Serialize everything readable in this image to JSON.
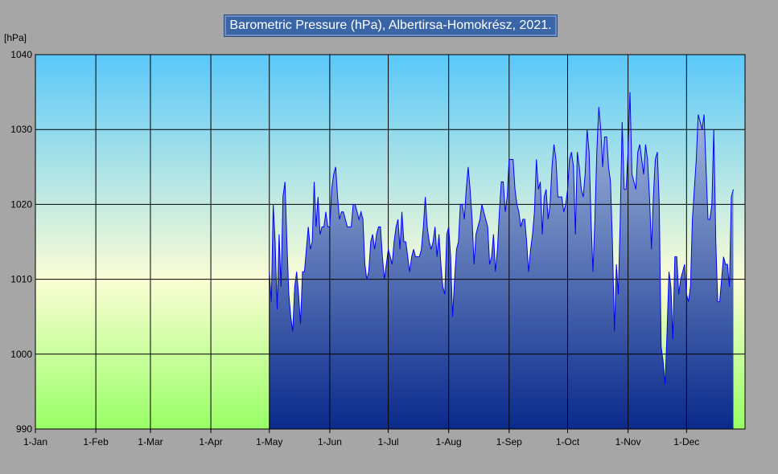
{
  "chart_data": {
    "type": "area",
    "title": "Barometric Pressure (hPa), Albertirsa-Homokrész,  2021.",
    "y_unit_label": "[hPa]",
    "ylim": [
      990,
      1040
    ],
    "y_ticks": [
      990,
      1000,
      1010,
      1020,
      1030,
      1040
    ],
    "x_domain_days": [
      0,
      364
    ],
    "x_ticks": [
      {
        "day": 0,
        "label": "1-Jan"
      },
      {
        "day": 31,
        "label": "1-Feb"
      },
      {
        "day": 59,
        "label": "1-Mar"
      },
      {
        "day": 90,
        "label": "1-Apr"
      },
      {
        "day": 120,
        "label": "1-May"
      },
      {
        "day": 151,
        "label": "1-Jun"
      },
      {
        "day": 181,
        "label": "1-Jul"
      },
      {
        "day": 212,
        "label": "1-Aug"
      },
      {
        "day": 243,
        "label": "1-Sep"
      },
      {
        "day": 273,
        "label": "1-Oct"
      },
      {
        "day": 304,
        "label": "1-Nov"
      },
      {
        "day": 334,
        "label": "1-Dec"
      }
    ],
    "grid": true,
    "background_colors": {
      "top": "#5ac8fa",
      "middle": "#fbfdd5",
      "bottom": "#99ff66"
    },
    "series": [
      {
        "color": "#0000ff",
        "fill_top": "#aac0e0",
        "fill_bottom": "#0a2a8c",
        "start_day": 120,
        "values": [
          1011,
          1007,
          1020,
          1015,
          1006,
          1016,
          1009,
          1021,
          1023,
          1015,
          1008,
          1005,
          1003,
          1009,
          1011,
          1008,
          1004,
          1011,
          1011,
          1014,
          1017,
          1014,
          1015,
          1023,
          1017,
          1021,
          1016,
          1017,
          1017,
          1019,
          1017,
          1017,
          1022,
          1024,
          1025,
          1021,
          1018,
          1019,
          1019,
          1018,
          1017,
          1017,
          1017,
          1020,
          1020,
          1019,
          1018,
          1019,
          1018,
          1012,
          1010,
          1011,
          1015,
          1016,
          1014,
          1016,
          1017,
          1017,
          1013,
          1010,
          1012,
          1014,
          1013,
          1012,
          1015,
          1017,
          1018,
          1014,
          1019,
          1015,
          1015,
          1013,
          1011,
          1013,
          1014,
          1013,
          1013,
          1013,
          1014,
          1017,
          1021,
          1017,
          1015,
          1014,
          1015,
          1017,
          1013,
          1016,
          1012,
          1009,
          1008,
          1016,
          1017,
          1013,
          1005,
          1010,
          1014,
          1015,
          1020,
          1020,
          1018,
          1022,
          1025,
          1022,
          1018,
          1012,
          1016,
          1017,
          1018,
          1020,
          1019,
          1018,
          1017,
          1012,
          1013,
          1016,
          1011,
          1014,
          1019,
          1023,
          1023,
          1019,
          1021,
          1026,
          1026,
          1026,
          1022,
          1020,
          1019,
          1017,
          1018,
          1018,
          1015,
          1011,
          1014,
          1016,
          1019,
          1026,
          1022,
          1023,
          1016,
          1021,
          1022,
          1018,
          1020,
          1025,
          1028,
          1026,
          1021,
          1021,
          1021,
          1019,
          1020,
          1022,
          1026,
          1027,
          1025,
          1016,
          1027,
          1025,
          1022,
          1021,
          1024,
          1030,
          1027,
          1018,
          1011,
          1018,
          1027,
          1033,
          1030,
          1025,
          1029,
          1029,
          1025,
          1023,
          1015,
          1003,
          1012,
          1008,
          1018,
          1031,
          1022,
          1022,
          1027,
          1035,
          1024,
          1023,
          1022,
          1027,
          1028,
          1026,
          1024,
          1028,
          1026,
          1021,
          1014,
          1021,
          1026,
          1027,
          1020,
          1001,
          999,
          996,
          1003,
          1011,
          1009,
          1002,
          1013,
          1013,
          1008,
          1010,
          1011,
          1012,
          1008,
          1007,
          1009,
          1018,
          1022,
          1026,
          1032,
          1031,
          1030,
          1032,
          1025,
          1018,
          1018,
          1020,
          1030,
          1015,
          1007,
          1007,
          1010,
          1013,
          1012,
          1012,
          1009,
          1021,
          1022
        ]
      }
    ]
  }
}
